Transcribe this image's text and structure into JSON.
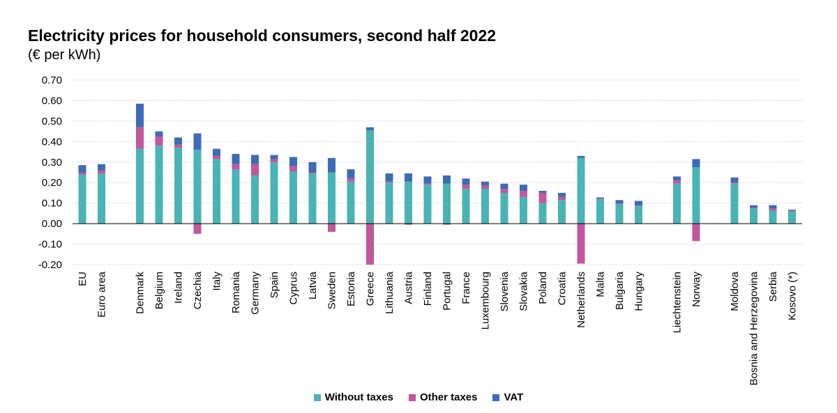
{
  "chart_data": {
    "type": "bar",
    "stacked": true,
    "title": "Electricity prices for household consumers, second half 2022",
    "subtitle": "(€ per kWh)",
    "ylim": [
      -0.2,
      0.7
    ],
    "yticks": [
      "0.70",
      "0.60",
      "0.50",
      "0.40",
      "0.30",
      "0.20",
      "0.10",
      "0.00",
      "-0.10",
      "-0.20"
    ],
    "ytick_values": [
      0.7,
      0.6,
      0.5,
      0.4,
      0.3,
      0.2,
      0.1,
      0.0,
      -0.1,
      -0.2
    ],
    "grid": true,
    "legend_position": "bottom",
    "categories": [
      "EU",
      "Euro area",
      "Denmark",
      "Belgium",
      "Ireland",
      "Czechia",
      "Italy",
      "Romania",
      "Germany",
      "Spain",
      "Cyprus",
      "Latvia",
      "Sweden",
      "Estonia",
      "Greece",
      "Lithuania",
      "Austria",
      "Finland",
      "Portugal",
      "France",
      "Luxembourg",
      "Slovenia",
      "Slovakia",
      "Poland",
      "Croatia",
      "Netherlands",
      "Malta",
      "Bulgaria",
      "Hungary",
      "Liechtenstein",
      "Norway",
      "Moldova",
      "Bosnia and Herzegovina",
      "Serbia",
      "Kosovo (*)"
    ],
    "groups": [
      2,
      27,
      2,
      4
    ],
    "series": [
      {
        "name": "Without taxes",
        "color": "#4ab3b3",
        "values": [
          0.24,
          0.245,
          0.365,
          0.38,
          0.37,
          0.36,
          0.315,
          0.265,
          0.235,
          0.3,
          0.255,
          0.245,
          0.25,
          0.205,
          0.455,
          0.2,
          0.205,
          0.19,
          0.195,
          0.17,
          0.17,
          0.15,
          0.13,
          0.1,
          0.115,
          0.32,
          0.12,
          0.095,
          0.085,
          0.195,
          0.275,
          0.195,
          0.075,
          0.065,
          0.06
        ]
      },
      {
        "name": "Other taxes",
        "color": "#c2579c",
        "values": [
          0.01,
          0.015,
          0.105,
          0.045,
          0.015,
          -0.05,
          0.015,
          0.025,
          0.055,
          0.015,
          0.025,
          0.005,
          -0.04,
          0.015,
          -0.2,
          0.005,
          -0.005,
          0.005,
          -0.005,
          0.02,
          0.015,
          0.02,
          0.03,
          0.05,
          0.015,
          -0.195,
          0.003,
          0.003,
          0.003,
          0.015,
          -0.085,
          0.005,
          0.003,
          0.01,
          0.003
        ]
      },
      {
        "name": "VAT",
        "color": "#3e6bb5",
        "values": [
          0.035,
          0.03,
          0.115,
          0.025,
          0.035,
          0.08,
          0.035,
          0.05,
          0.045,
          0.02,
          0.045,
          0.05,
          0.07,
          0.045,
          0.015,
          0.04,
          0.04,
          0.035,
          0.04,
          0.03,
          0.02,
          0.025,
          0.03,
          0.01,
          0.02,
          0.01,
          0.005,
          0.017,
          0.023,
          0.02,
          0.04,
          0.025,
          0.012,
          0.015,
          0.005
        ]
      }
    ]
  }
}
